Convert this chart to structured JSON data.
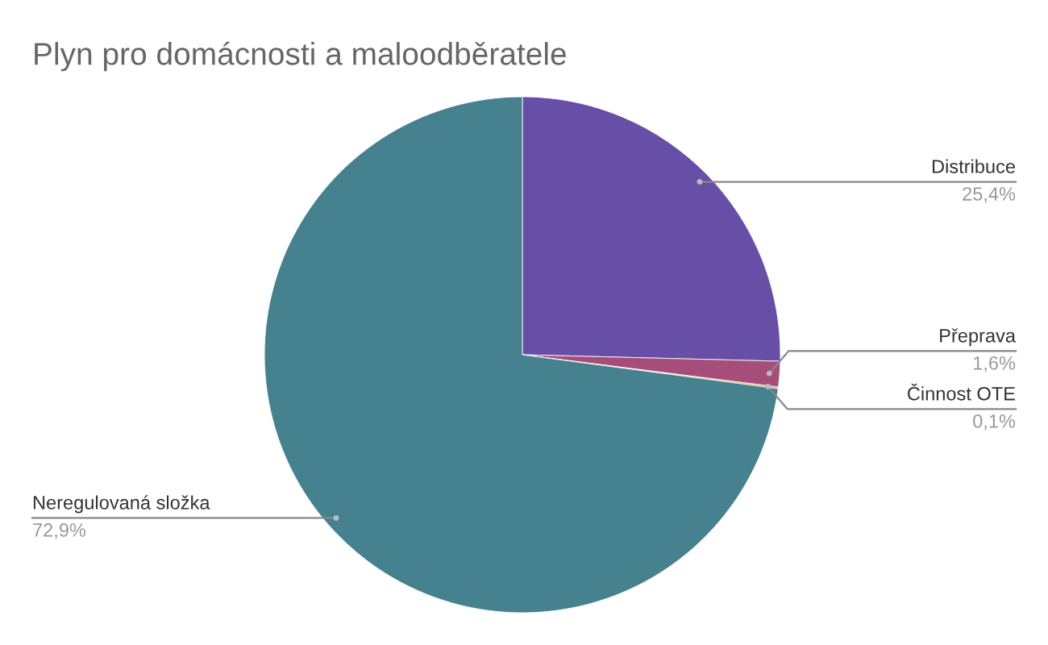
{
  "chart_data": {
    "type": "pie",
    "title": "Plyn pro domácnosti a maloodběratele",
    "categories": [
      "Distribuce",
      "Přeprava",
      "Činnost OTE",
      "Neregulovaná složka"
    ],
    "values": [
      25.4,
      1.6,
      0.1,
      72.9
    ],
    "colors": [
      "#674ea7",
      "#a64d79",
      "#e69138",
      "#45818e"
    ],
    "value_labels": [
      "25,4%",
      "1,6%",
      "0,1%",
      "72,9%"
    ]
  }
}
